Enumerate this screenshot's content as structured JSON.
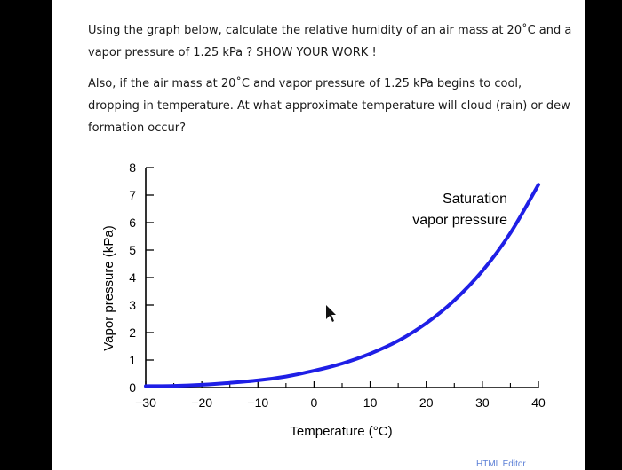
{
  "question": {
    "paragraph1": "Using the graph below, calculate the relative humidity of an air mass at 20˚C and a vapor pressure of 1.25 kPa ? SHOW YOUR WORK !",
    "paragraph2": "Also, if the air mass at 20˚C and vapor pressure of 1.25 kPa begins to cool, dropping in temperature. At what approximate temperature will cloud (rain) or dew formation occur?"
  },
  "watermark": "HTML Editor",
  "colors": {
    "curve": "#1f1fe6",
    "axis": "#000000",
    "background": "#ffffff",
    "frame": "#000000"
  },
  "chart_data": {
    "type": "line",
    "title": "",
    "xlabel": "Temperature (°C)",
    "ylabel": "Vapor pressure (kPa)",
    "xlim": [
      -30,
      40
    ],
    "ylim": [
      0,
      8
    ],
    "x_ticks": [
      "−30",
      "−20",
      "−10",
      "0",
      "10",
      "20",
      "30",
      "40"
    ],
    "y_ticks": [
      "0",
      "1",
      "2",
      "3",
      "4",
      "5",
      "6",
      "7",
      "8"
    ],
    "grid": false,
    "series": [
      {
        "name": "Saturation vapor pressure",
        "x": [
          -30,
          -25,
          -20,
          -15,
          -10,
          -5,
          0,
          5,
          10,
          15,
          20,
          25,
          30,
          35,
          40
        ],
        "y": [
          0.05,
          0.06,
          0.1,
          0.17,
          0.26,
          0.4,
          0.61,
          0.87,
          1.23,
          1.7,
          2.34,
          3.17,
          4.24,
          5.62,
          7.38
        ]
      }
    ],
    "annotations": [
      {
        "text_line1": "Saturation",
        "text_line2": "vapor pressure"
      }
    ]
  }
}
